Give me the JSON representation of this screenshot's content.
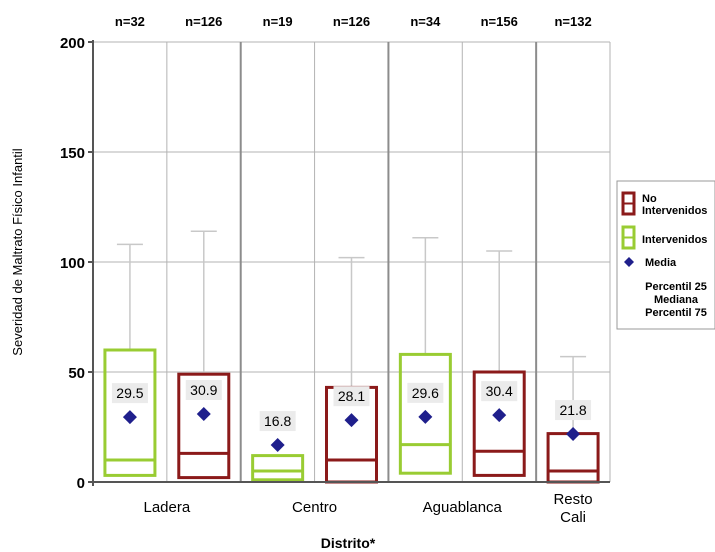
{
  "chart_data": {
    "type": "boxplot",
    "title": "",
    "xlabel": "Distrito*",
    "ylabel": "Severidad de Maltrato Físico Infantil",
    "ylim": [
      0,
      200
    ],
    "yticks": [
      0,
      50,
      100,
      150,
      200
    ],
    "grid": true,
    "legend_position": "right",
    "districts": [
      {
        "label": "Ladera",
        "label_lines": [
          "Ladera"
        ]
      },
      {
        "label": "Centro",
        "label_lines": [
          "Centro"
        ]
      },
      {
        "label": "Aguablanca",
        "label_lines": [
          "Aguablanca"
        ]
      },
      {
        "label": "Resto Cali",
        "label_lines": [
          "Resto",
          "Cali"
        ]
      }
    ],
    "groups": [
      {
        "district": "Ladera",
        "series": "Intervenidos",
        "n_label": "n=32",
        "mean": 29.5,
        "mean_label": "29.5",
        "p25": 3,
        "median": 10,
        "p75": 60,
        "whisker_max": 108
      },
      {
        "district": "Ladera",
        "series": "No Intervenidos",
        "n_label": "n=126",
        "mean": 30.9,
        "mean_label": "30.9",
        "p25": 2,
        "median": 13,
        "p75": 49,
        "whisker_max": 114
      },
      {
        "district": "Centro",
        "series": "Intervenidos",
        "n_label": "n=19",
        "mean": 16.8,
        "mean_label": "16.8",
        "p25": 1,
        "median": 5,
        "p75": 12,
        "whisker_max": null
      },
      {
        "district": "Centro",
        "series": "No Intervenidos",
        "n_label": "n=126",
        "mean": 28.1,
        "mean_label": "28.1",
        "p25": 0,
        "median": 10,
        "p75": 43,
        "whisker_max": 102
      },
      {
        "district": "Aguablanca",
        "series": "Intervenidos",
        "n_label": "n=34",
        "mean": 29.6,
        "mean_label": "29.6",
        "p25": 4,
        "median": 17,
        "p75": 58,
        "whisker_max": 111
      },
      {
        "district": "Aguablanca",
        "series": "No Intervenidos",
        "n_label": "n=156",
        "mean": 30.4,
        "mean_label": "30.4",
        "p25": 3,
        "median": 14,
        "p75": 50,
        "whisker_max": 105
      },
      {
        "district": "Resto Cali",
        "series": "No Intervenidos",
        "n_label": "n=132",
        "mean": 21.8,
        "mean_label": "21.8",
        "p25": 0,
        "median": 5,
        "p75": 22,
        "whisker_max": 57
      }
    ],
    "legend": {
      "no_intervenidos": {
        "line1": "No",
        "line2": "Intervenidos",
        "color": "#8b1a1a"
      },
      "intervenidos": {
        "label": "Intervenidos",
        "color": "#99cc33"
      },
      "media": {
        "label": "Media",
        "color": "#1f1f8c"
      },
      "percentiles": {
        "line1": "Percentil 25",
        "line2": "Mediana",
        "line3": "Percentil 75"
      }
    }
  }
}
